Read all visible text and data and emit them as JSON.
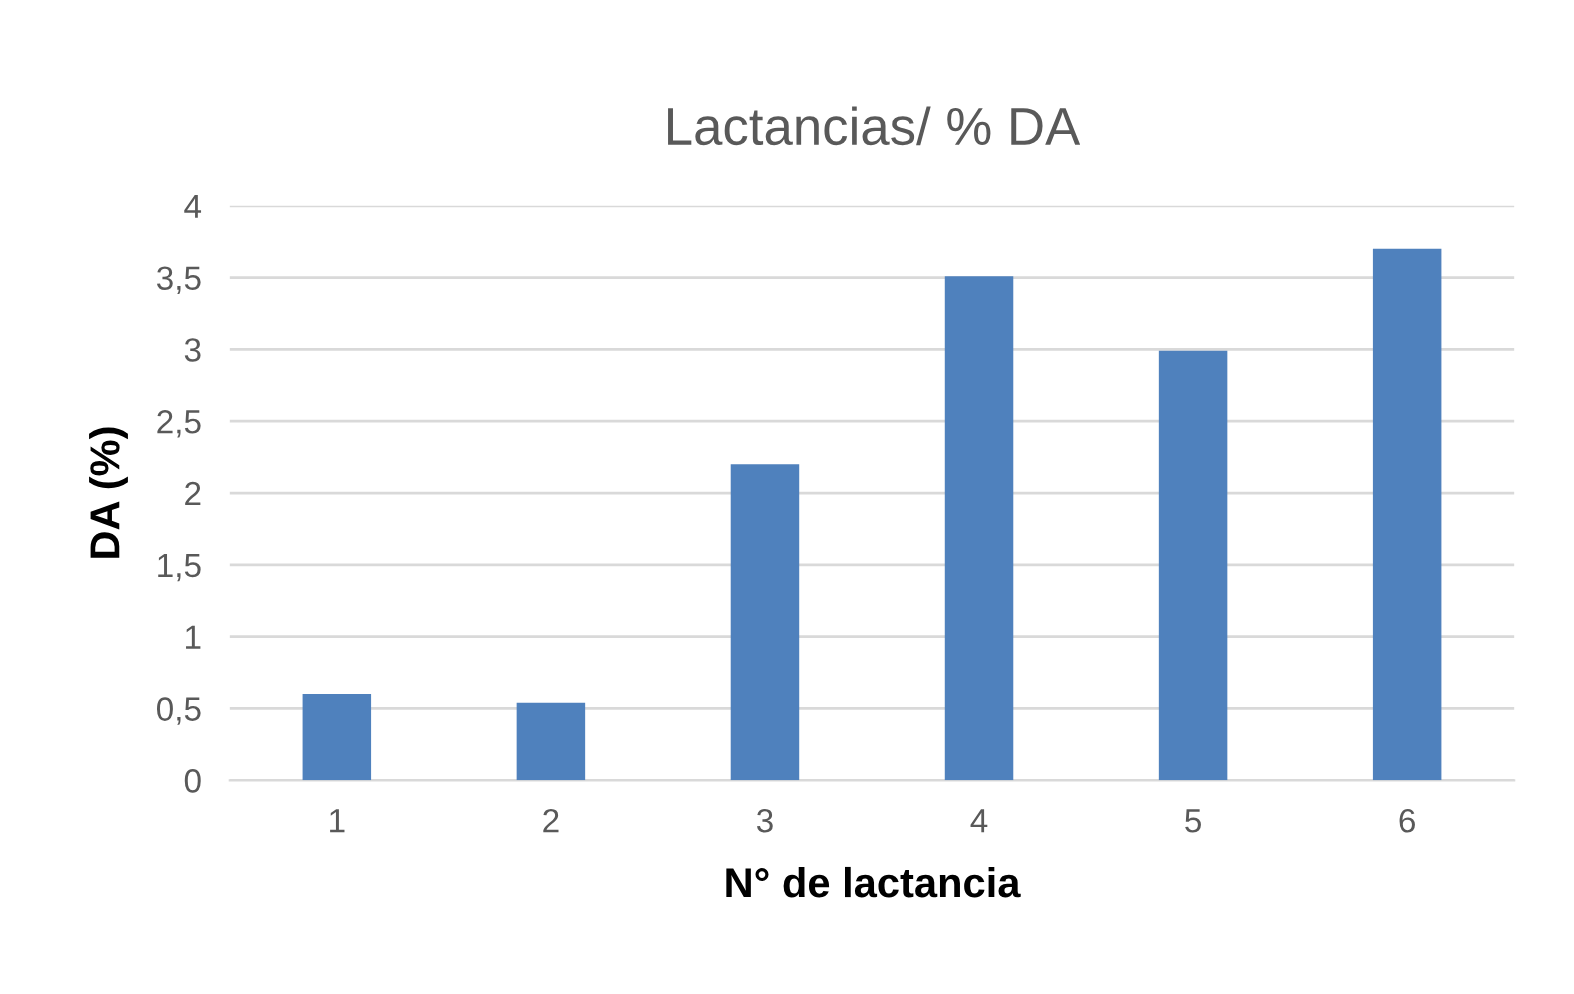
{
  "chart_data": {
    "type": "bar",
    "title": "Lactancias/ % DA",
    "xlabel": "N° de lactancia",
    "ylabel": "DA (%)",
    "categories": [
      "1",
      "2",
      "3",
      "4",
      "5",
      "6"
    ],
    "values": [
      0.6,
      0.54,
      2.2,
      3.51,
      2.99,
      3.7
    ],
    "color": "#4f81bd",
    "ylim": [
      0,
      4
    ],
    "yticks": [
      0,
      {
        "value": 0.5,
        "label": "0,5"
      },
      1,
      {
        "value": 1.5,
        "label": "1,5"
      },
      2,
      {
        "value": 2.5,
        "label": "2,5"
      },
      3,
      {
        "value": 3.5,
        "label": "3,5"
      },
      4
    ],
    "grid": "y",
    "legend": false
  }
}
